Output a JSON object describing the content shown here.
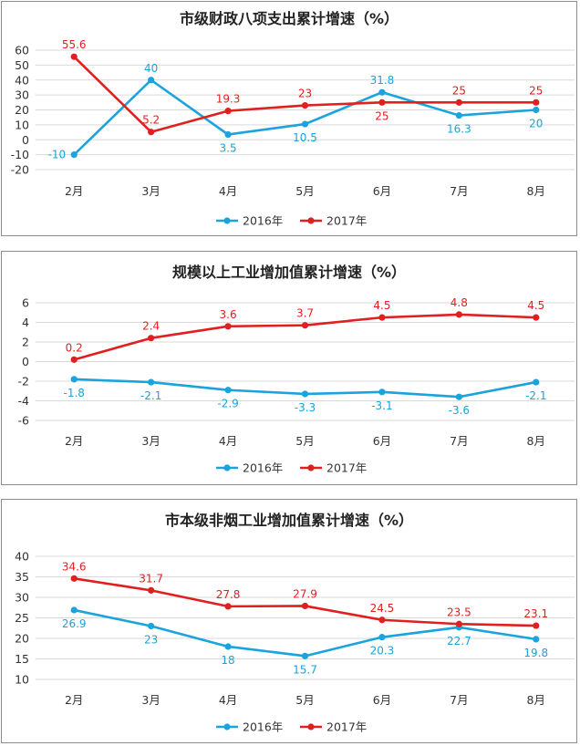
{
  "colors": {
    "s2016": "#1aa3dc",
    "s2017": "#e02020",
    "grid": "#d9d9d9",
    "axis": "#a6a6a6"
  },
  "chart_data": [
    {
      "type": "line",
      "title": "市级财政八项支出累计增速（%）",
      "categories": [
        "2月",
        "3月",
        "4月",
        "5月",
        "6月",
        "7月",
        "8月"
      ],
      "ylim": [
        -20,
        60
      ],
      "yticks": [
        -20,
        -10,
        0,
        10,
        20,
        30,
        40,
        50,
        60
      ],
      "ytick_labels": [
        "-20",
        "-10",
        "0",
        "10",
        "20",
        "30",
        "40",
        "50",
        "60"
      ],
      "grid": true,
      "legend": "bottom",
      "series": [
        {
          "name": "2016年",
          "values": [
            -10,
            40,
            3.5,
            10.5,
            31.8,
            16.3,
            20
          ],
          "labels": [
            "-10",
            "40",
            "3.5",
            "10.5",
            "31.8",
            "16.3",
            "20"
          ],
          "label_pos": [
            "left",
            "above",
            "below",
            "below",
            "above",
            "below",
            "below"
          ]
        },
        {
          "name": "2017年",
          "values": [
            55.6,
            5.2,
            19.3,
            23,
            25,
            25,
            25
          ],
          "labels": [
            "55.6",
            "5.2",
            "19.3",
            "23",
            "25",
            "25",
            "25"
          ],
          "label_pos": [
            "above",
            "above",
            "above",
            "above",
            "below",
            "above",
            "above"
          ]
        }
      ]
    },
    {
      "type": "line",
      "title": "规模以上工业增加值累计增速（%）",
      "categories": [
        "2月",
        "3月",
        "4月",
        "5月",
        "6月",
        "7月",
        "8月"
      ],
      "ylim": [
        -6,
        6
      ],
      "yticks": [
        -6,
        -4,
        -2,
        0,
        2,
        4,
        6
      ],
      "ytick_labels": [
        "-6",
        "-4",
        "-2",
        "0",
        "2",
        "4",
        "6"
      ],
      "grid": true,
      "legend": "bottom",
      "series": [
        {
          "name": "2016年",
          "values": [
            -1.8,
            -2.1,
            -2.9,
            -3.3,
            -3.1,
            -3.6,
            -2.1
          ],
          "labels": [
            "-1.8",
            "-2.1",
            "-2.9",
            "-3.3",
            "-3.1",
            "-3.6",
            "-2.1"
          ],
          "label_pos": [
            "below",
            "below",
            "below",
            "below",
            "below",
            "below",
            "below"
          ]
        },
        {
          "name": "2017年",
          "values": [
            0.2,
            2.4,
            3.6,
            3.7,
            4.5,
            4.8,
            4.5
          ],
          "labels": [
            "0.2",
            "2.4",
            "3.6",
            "3.7",
            "4.5",
            "4.8",
            "4.5"
          ],
          "label_pos": [
            "above",
            "above",
            "above",
            "above",
            "above",
            "above",
            "above"
          ]
        }
      ]
    },
    {
      "type": "line",
      "title": "市本级非烟工业增加值累计增速（%）",
      "categories": [
        "2月",
        "3月",
        "4月",
        "5月",
        "6月",
        "7月",
        "8月"
      ],
      "ylim": [
        10,
        40
      ],
      "yticks": [
        10,
        15,
        20,
        25,
        30,
        35,
        40
      ],
      "ytick_labels": [
        "10",
        "15",
        "20",
        "25",
        "30",
        "35",
        "40"
      ],
      "grid": true,
      "legend": "bottom",
      "series": [
        {
          "name": "2016年",
          "values": [
            26.9,
            23,
            18,
            15.7,
            20.3,
            22.7,
            19.8
          ],
          "labels": [
            "26.9",
            "23",
            "18",
            "15.7",
            "20.3",
            "22.7",
            "19.8"
          ],
          "label_pos": [
            "below",
            "below",
            "below",
            "below",
            "below",
            "below",
            "below"
          ]
        },
        {
          "name": "2017年",
          "values": [
            34.6,
            31.7,
            27.8,
            27.9,
            24.5,
            23.5,
            23.1
          ],
          "labels": [
            "34.6",
            "31.7",
            "27.8",
            "27.9",
            "24.5",
            "23.5",
            "23.1"
          ],
          "label_pos": [
            "above",
            "above",
            "above",
            "above",
            "above",
            "above",
            "above"
          ]
        }
      ]
    }
  ]
}
